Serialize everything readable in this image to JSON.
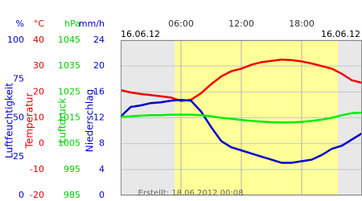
{
  "chart_data": {
    "type": "line",
    "date_left": "16.06.12",
    "date_right": "16.06.12",
    "created": "Erstellt: 18.06.2012 00:08",
    "x": [
      0,
      1,
      2,
      3,
      4,
      5,
      6,
      7,
      8,
      9,
      10,
      11,
      12,
      13,
      14,
      15,
      16,
      17,
      18,
      19,
      20,
      21,
      22,
      23,
      24
    ],
    "xlim": [
      0,
      24
    ],
    "xticks": [
      {
        "value": 6,
        "label": "06:00"
      },
      {
        "value": 12,
        "label": "12:00"
      },
      {
        "value": 18,
        "label": "18:00"
      }
    ],
    "daylight": [
      5.4,
      21.6
    ],
    "axes": [
      {
        "unit": "%",
        "title": "Luftfeuchtigkeit",
        "color": "#0000cc",
        "ylim": [
          0,
          100
        ],
        "ticks": [
          100,
          75,
          50,
          25,
          0
        ]
      },
      {
        "unit": "°C",
        "title": "Temperatur",
        "color": "#dd0000",
        "ylim": [
          -20,
          40
        ],
        "ticks": [
          40,
          30,
          20,
          10,
          0,
          -10,
          -20
        ]
      },
      {
        "unit": "hPa",
        "title": "Luftdruck",
        "color": "#00cc00",
        "ylim": [
          985,
          1045
        ],
        "ticks": [
          1045,
          1035,
          1025,
          1015,
          1005,
          995,
          985
        ]
      },
      {
        "unit": "mm/h",
        "title": "Niederschlag",
        "color": "#0000cc",
        "ylim": [
          0,
          24
        ],
        "ticks": [
          24,
          20,
          16,
          12,
          8,
          4,
          0
        ]
      }
    ],
    "series": [
      {
        "name": "Temperatur",
        "color": "#ee0000",
        "axis": 1,
        "values": [
          20.7,
          19.8,
          19.2,
          18.8,
          18.3,
          17.8,
          16.5,
          17,
          19.5,
          23,
          26,
          28,
          29,
          30.5,
          31.5,
          32,
          32.5,
          32.3,
          31.8,
          31,
          30,
          29,
          27,
          24.5,
          23.5
        ]
      },
      {
        "name": "Luftfeuchtigkeit",
        "color": "#0000cc",
        "axis": 0,
        "values": [
          50.8,
          57,
          58,
          59.5,
          60,
          61,
          61.5,
          61,
          54,
          44,
          35,
          31,
          29,
          27,
          25,
          23,
          21,
          21,
          22,
          23,
          26,
          30,
          32,
          36,
          40
        ]
      },
      {
        "name": "Luftdruck",
        "color": "#00ee00",
        "axis": 2,
        "values": [
          1015.4,
          1015.6,
          1015.8,
          1016,
          1016,
          1016.2,
          1016.2,
          1016.2,
          1016,
          1015.6,
          1015,
          1014.6,
          1014.2,
          1013.8,
          1013.5,
          1013.3,
          1013.2,
          1013.2,
          1013.4,
          1013.8,
          1014.3,
          1015,
          1016,
          1016.8,
          1017
        ]
      }
    ]
  }
}
